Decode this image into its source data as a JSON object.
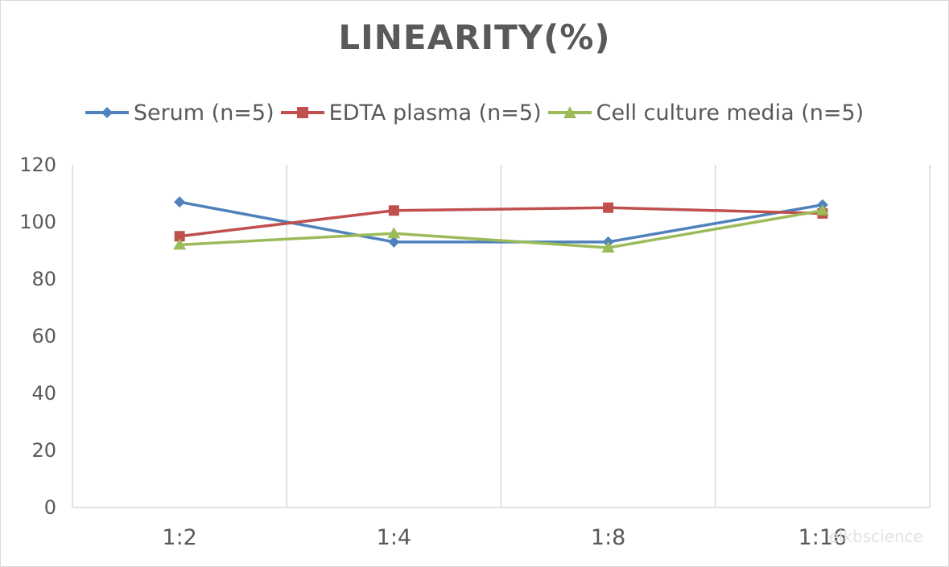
{
  "chart_data": {
    "type": "line",
    "title": "LINEARITY(%)",
    "xlabel": "",
    "ylabel": "",
    "categories": [
      "1:2",
      "1:4",
      "1:8",
      "1:16"
    ],
    "ylim": [
      0,
      120
    ],
    "yticks": [
      0,
      20,
      40,
      60,
      80,
      100,
      120
    ],
    "grid": "vertical",
    "legend_position": "top",
    "series": [
      {
        "name": "Serum (n=5)",
        "values": [
          107,
          93,
          93,
          106
        ],
        "color": "#4f81bd",
        "marker": "diamond"
      },
      {
        "name": "EDTA plasma (n=5)",
        "values": [
          95,
          104,
          105,
          103
        ],
        "color": "#c0504d",
        "marker": "square"
      },
      {
        "name": "Cell culture media (n=5)",
        "values": [
          92,
          96,
          91,
          104
        ],
        "color": "#9bbb59",
        "marker": "triangle"
      }
    ]
  },
  "watermark": "elkbscience"
}
